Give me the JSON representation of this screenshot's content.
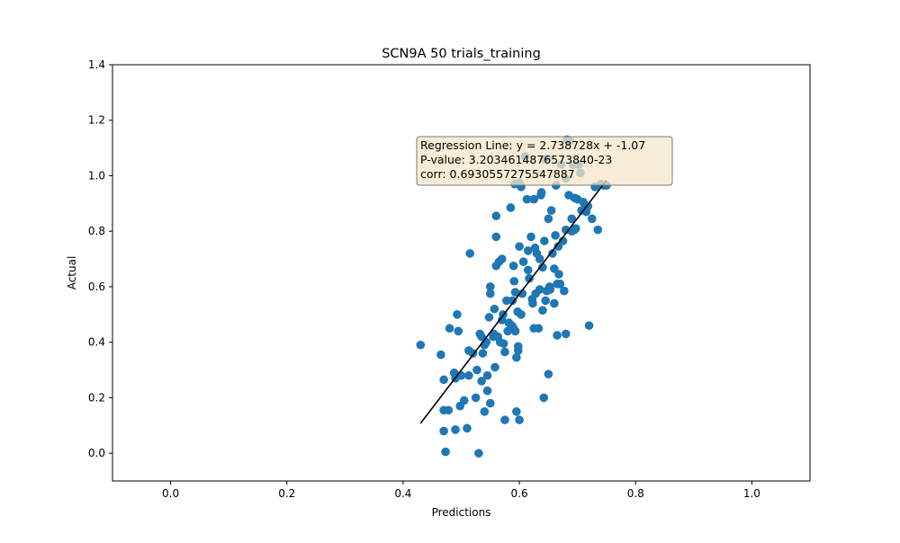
{
  "chart_data": {
    "type": "scatter",
    "title": "SCN9A 50 trials_training",
    "xlabel": "Predictions",
    "ylabel": "Actual",
    "xlim": [
      -0.1,
      1.1
    ],
    "ylim": [
      -0.1,
      1.4
    ],
    "x_ticks": [
      "0.0",
      "0.2",
      "0.4",
      "0.6",
      "0.8",
      "1.0"
    ],
    "y_ticks": [
      "0.0",
      "0.2",
      "0.4",
      "0.6",
      "0.8",
      "1.0",
      "1.2",
      "1.4"
    ],
    "grid": false,
    "marker_color": "#1f77b4",
    "line_color": "#000000",
    "annotation_box_color": "#f5e6c8",
    "regression": {
      "slope": 2.738728,
      "intercept": -1.07,
      "x_range": [
        0.43,
        0.75
      ]
    },
    "annotation": [
      "Regression Line: y = 2.738728x + -1.07",
      "P-value: 3.2034614876573840-23",
      "corr: 0.6930557275547887"
    ],
    "points": [
      [
        0.43,
        0.39
      ],
      [
        0.465,
        0.355
      ],
      [
        0.47,
        0.265
      ],
      [
        0.47,
        0.155
      ],
      [
        0.47,
        0.08
      ],
      [
        0.473,
        0.005
      ],
      [
        0.478,
        0.155
      ],
      [
        0.48,
        0.45
      ],
      [
        0.488,
        0.29
      ],
      [
        0.49,
        0.27
      ],
      [
        0.49,
        0.085
      ],
      [
        0.493,
        0.5
      ],
      [
        0.495,
        0.44
      ],
      [
        0.498,
        0.17
      ],
      [
        0.5,
        0.28
      ],
      [
        0.505,
        0.19
      ],
      [
        0.51,
        0.09
      ],
      [
        0.513,
        0.37
      ],
      [
        0.513,
        0.28
      ],
      [
        0.515,
        0.72
      ],
      [
        0.52,
        0.36
      ],
      [
        0.525,
        0.2
      ],
      [
        0.527,
        0.3
      ],
      [
        0.53,
        0.0
      ],
      [
        0.532,
        0.43
      ],
      [
        0.535,
        0.42
      ],
      [
        0.535,
        0.26
      ],
      [
        0.537,
        0.36
      ],
      [
        0.54,
        0.39
      ],
      [
        0.54,
        0.15
      ],
      [
        0.543,
        0.4
      ],
      [
        0.545,
        0.28
      ],
      [
        0.545,
        0.225
      ],
      [
        0.548,
        0.49
      ],
      [
        0.55,
        0.18
      ],
      [
        0.55,
        0.6
      ],
      [
        0.55,
        0.575
      ],
      [
        0.555,
        0.42
      ],
      [
        0.556,
        0.43
      ],
      [
        0.557,
        0.52
      ],
      [
        0.558,
        0.31
      ],
      [
        0.56,
        0.855
      ],
      [
        0.56,
        0.78
      ],
      [
        0.56,
        0.675
      ],
      [
        0.563,
        0.42
      ],
      [
        0.565,
        0.69
      ],
      [
        0.567,
        0.4
      ],
      [
        0.57,
        0.7
      ],
      [
        0.57,
        0.48
      ],
      [
        0.572,
        0.5
      ],
      [
        0.573,
        0.395
      ],
      [
        0.575,
        0.12
      ],
      [
        0.575,
        0.365
      ],
      [
        0.578,
        0.55
      ],
      [
        0.58,
        0.44
      ],
      [
        0.582,
        0.47
      ],
      [
        0.585,
        0.885
      ],
      [
        0.587,
        0.46
      ],
      [
        0.588,
        0.55
      ],
      [
        0.59,
        0.45
      ],
      [
        0.59,
        0.675
      ],
      [
        0.591,
        0.62
      ],
      [
        0.592,
        0.97
      ],
      [
        0.593,
        0.58
      ],
      [
        0.593,
        0.44
      ],
      [
        0.595,
        0.345
      ],
      [
        0.595,
        0.15
      ],
      [
        0.597,
        0.51
      ],
      [
        0.598,
        0.385
      ],
      [
        0.598,
        0.37
      ],
      [
        0.6,
        0.745
      ],
      [
        0.6,
        0.12
      ],
      [
        0.6,
        0.975
      ],
      [
        0.603,
        0.5
      ],
      [
        0.603,
        0.96
      ],
      [
        0.605,
        0.575
      ],
      [
        0.607,
        0.69
      ],
      [
        0.61,
        1.07
      ],
      [
        0.613,
        0.915
      ],
      [
        0.615,
        0.73
      ],
      [
        0.615,
        0.66
      ],
      [
        0.617,
        0.63
      ],
      [
        0.62,
        0.78
      ],
      [
        0.622,
        0.555
      ],
      [
        0.623,
        0.54
      ],
      [
        0.625,
        0.915
      ],
      [
        0.625,
        0.45
      ],
      [
        0.627,
        0.74
      ],
      [
        0.628,
        0.575
      ],
      [
        0.63,
        0.72
      ],
      [
        0.633,
        0.45
      ],
      [
        0.635,
        0.59
      ],
      [
        0.635,
        0.7
      ],
      [
        0.637,
        0.93
      ],
      [
        0.638,
        0.94
      ],
      [
        0.64,
        0.67
      ],
      [
        0.64,
        0.515
      ],
      [
        0.642,
        0.2
      ],
      [
        0.643,
        0.765
      ],
      [
        0.643,
        1.06
      ],
      [
        0.645,
        0.55
      ],
      [
        0.647,
        0.585
      ],
      [
        0.648,
        1.06
      ],
      [
        0.65,
        0.845
      ],
      [
        0.65,
        0.285
      ],
      [
        0.652,
        0.6
      ],
      [
        0.653,
        0.59
      ],
      [
        0.655,
        0.875
      ],
      [
        0.657,
        0.72
      ],
      [
        0.66,
        0.665
      ],
      [
        0.66,
        0.54
      ],
      [
        0.662,
        0.785
      ],
      [
        0.663,
        0.965
      ],
      [
        0.665,
        0.61
      ],
      [
        0.665,
        0.425
      ],
      [
        0.667,
        0.745
      ],
      [
        0.668,
        0.645
      ],
      [
        0.67,
        0.61
      ],
      [
        0.67,
        0.61
      ],
      [
        0.672,
        1.04
      ],
      [
        0.675,
        0.765
      ],
      [
        0.677,
        0.585
      ],
      [
        0.68,
        0.43
      ],
      [
        0.68,
        0.805
      ],
      [
        0.68,
        0.99
      ],
      [
        0.682,
        1.13
      ],
      [
        0.685,
        0.93
      ],
      [
        0.687,
        1.125
      ],
      [
        0.69,
        0.845
      ],
      [
        0.69,
        0.8
      ],
      [
        0.692,
        1.04
      ],
      [
        0.695,
        0.92
      ],
      [
        0.695,
        0.805
      ],
      [
        0.697,
        0.81
      ],
      [
        0.7,
        0.915
      ],
      [
        0.702,
        1.04
      ],
      [
        0.705,
        1.01
      ],
      [
        0.707,
        0.875
      ],
      [
        0.71,
        0.905
      ],
      [
        0.712,
        0.88
      ],
      [
        0.715,
        0.87
      ],
      [
        0.718,
        0.89
      ],
      [
        0.72,
        0.46
      ],
      [
        0.725,
        0.845
      ],
      [
        0.73,
        0.96
      ],
      [
        0.735,
        0.805
      ],
      [
        0.74,
        0.97
      ],
      [
        0.745,
        0.965
      ],
      [
        0.75,
        0.965
      ]
    ]
  }
}
